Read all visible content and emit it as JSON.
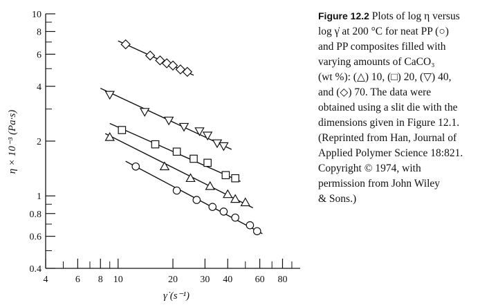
{
  "chart_data": {
    "type": "scatter",
    "x_scale": "log",
    "y_scale": "log",
    "xlim": [
      4,
      100
    ],
    "ylim": [
      0.4,
      10
    ],
    "xlabel": "γ̇ (s⁻¹)",
    "ylabel": "η × 10⁻³ (Pa·s)",
    "x_ticks": [
      4,
      6,
      8,
      10,
      20,
      30,
      40,
      60,
      80
    ],
    "y_ticks": [
      0.4,
      0.6,
      0.8,
      1,
      2,
      4,
      6,
      8,
      10
    ],
    "grid": false,
    "series": [
      {
        "marker": "circle",
        "points": [
          [
            12.5,
            1.45
          ],
          [
            21,
            1.07
          ],
          [
            27,
            0.95
          ],
          [
            33,
            0.87
          ],
          [
            38,
            0.82
          ],
          [
            44,
            0.76
          ],
          [
            53,
            0.69
          ],
          [
            58,
            0.64
          ]
        ],
        "fit": [
          [
            11,
            1.55
          ],
          [
            62,
            0.62
          ]
        ]
      },
      {
        "marker": "triangle",
        "points": [
          [
            9,
            2.1
          ],
          [
            18,
            1.45
          ],
          [
            25,
            1.25
          ],
          [
            32,
            1.13
          ],
          [
            40,
            1.02
          ],
          [
            44,
            0.96
          ],
          [
            50,
            0.92
          ]
        ],
        "fit": [
          [
            8.5,
            2.2
          ],
          [
            55,
            0.86
          ]
        ]
      },
      {
        "marker": "square",
        "points": [
          [
            10.5,
            2.3
          ],
          [
            16,
            1.92
          ],
          [
            21,
            1.75
          ],
          [
            26,
            1.6
          ],
          [
            31,
            1.52
          ],
          [
            39,
            1.3
          ],
          [
            44,
            1.25
          ]
        ],
        "fit": [
          [
            9,
            2.5
          ],
          [
            47,
            1.2
          ]
        ]
      },
      {
        "marker": "triangle-down",
        "points": [
          [
            9,
            3.6
          ],
          [
            14,
            2.9
          ],
          [
            19,
            2.6
          ],
          [
            23,
            2.4
          ],
          [
            28,
            2.27
          ],
          [
            31,
            2.15
          ],
          [
            35,
            1.95
          ],
          [
            38,
            1.88
          ]
        ],
        "fit": [
          [
            8,
            3.9
          ],
          [
            42,
            1.8
          ]
        ]
      },
      {
        "marker": "diamond",
        "points": [
          [
            11,
            6.8
          ],
          [
            15,
            5.9
          ],
          [
            17,
            5.55
          ],
          [
            18.5,
            5.35
          ],
          [
            20,
            5.2
          ],
          [
            22,
            4.95
          ],
          [
            24,
            4.8
          ]
        ],
        "fit": [
          [
            10,
            7.1
          ],
          [
            26,
            4.6
          ]
        ]
      }
    ]
  },
  "caption": {
    "figure_label": "Figure 12.2",
    "lines": [
      " Plots of log η versus",
      "log γ̇ at 200 °C for neat PP (○)",
      "and PP composites filled with",
      "varying amounts of CaCO₃",
      "(wt %): (△) 10, (□) 20, (▽) 40,",
      "and (◇) 70. The data were",
      "obtained using a slit die with the",
      "dimensions given in Figure 12.1.",
      "(Reprinted from Han, Journal of",
      "Applied Polymer Science 18:821.",
      "Copyright © 1974, with",
      "permission from John Wiley",
      "& Sons.)"
    ]
  }
}
